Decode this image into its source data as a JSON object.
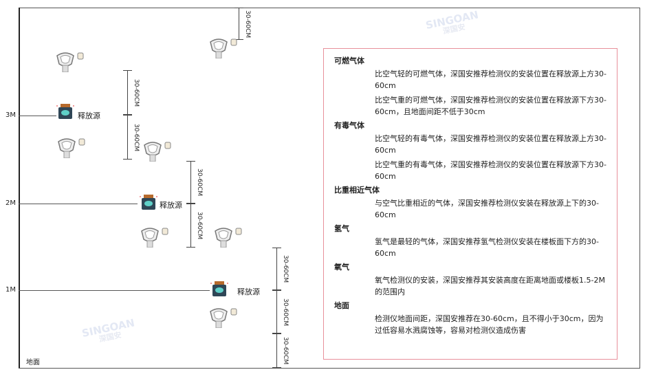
{
  "watermark": {
    "brand": "SINGOAN",
    "cn": "深国安"
  },
  "levels": {
    "m3": "3M",
    "m2": "2M",
    "m1": "1M",
    "ground": "地面"
  },
  "source_label": "释放源",
  "dim_label": "30-60CM",
  "panel": {
    "sections": [
      {
        "title": "可燃气体",
        "paras": [
          "比空气轻的可燃气体，深国安推荐检测仪的安装位置在释放源上方30-60cm",
          "比空气重的可燃气体，深国安推荐检测仪的安装位置在释放源下方30-60cm，且地面间距不低于30cm"
        ]
      },
      {
        "title": "有毒气体",
        "paras": [
          "比空气轻的有毒气体，深国安推荐检测仪的安装位置在释放源上方30-60cm",
          "比空气重的有毒气体，深国安推荐检测仪的安装位置在释放源下方30-60cm"
        ]
      },
      {
        "title": "比重相近气体",
        "paras": [
          "与空气比重相近的气体，深国安推荐检测仪安装在释放源上下的30-60cm"
        ]
      },
      {
        "title": "氢气",
        "paras": [
          "氢气是最轻的气体，深国安推荐氢气检测仪安装在楼板面下方的30-60cm"
        ]
      },
      {
        "title": "氧气",
        "paras": [
          "氧气检测仪的安装，深国安推荐其安装高度在距离地面或楼板1.5-2M的范围内"
        ]
      },
      {
        "title": "地面",
        "paras": [
          "检测仪地面间距，深国安推荐在30-60cm，且不得小于30cm，因为过低容易水溅腐蚀等，容易对检测仪造成伤害"
        ]
      }
    ]
  }
}
